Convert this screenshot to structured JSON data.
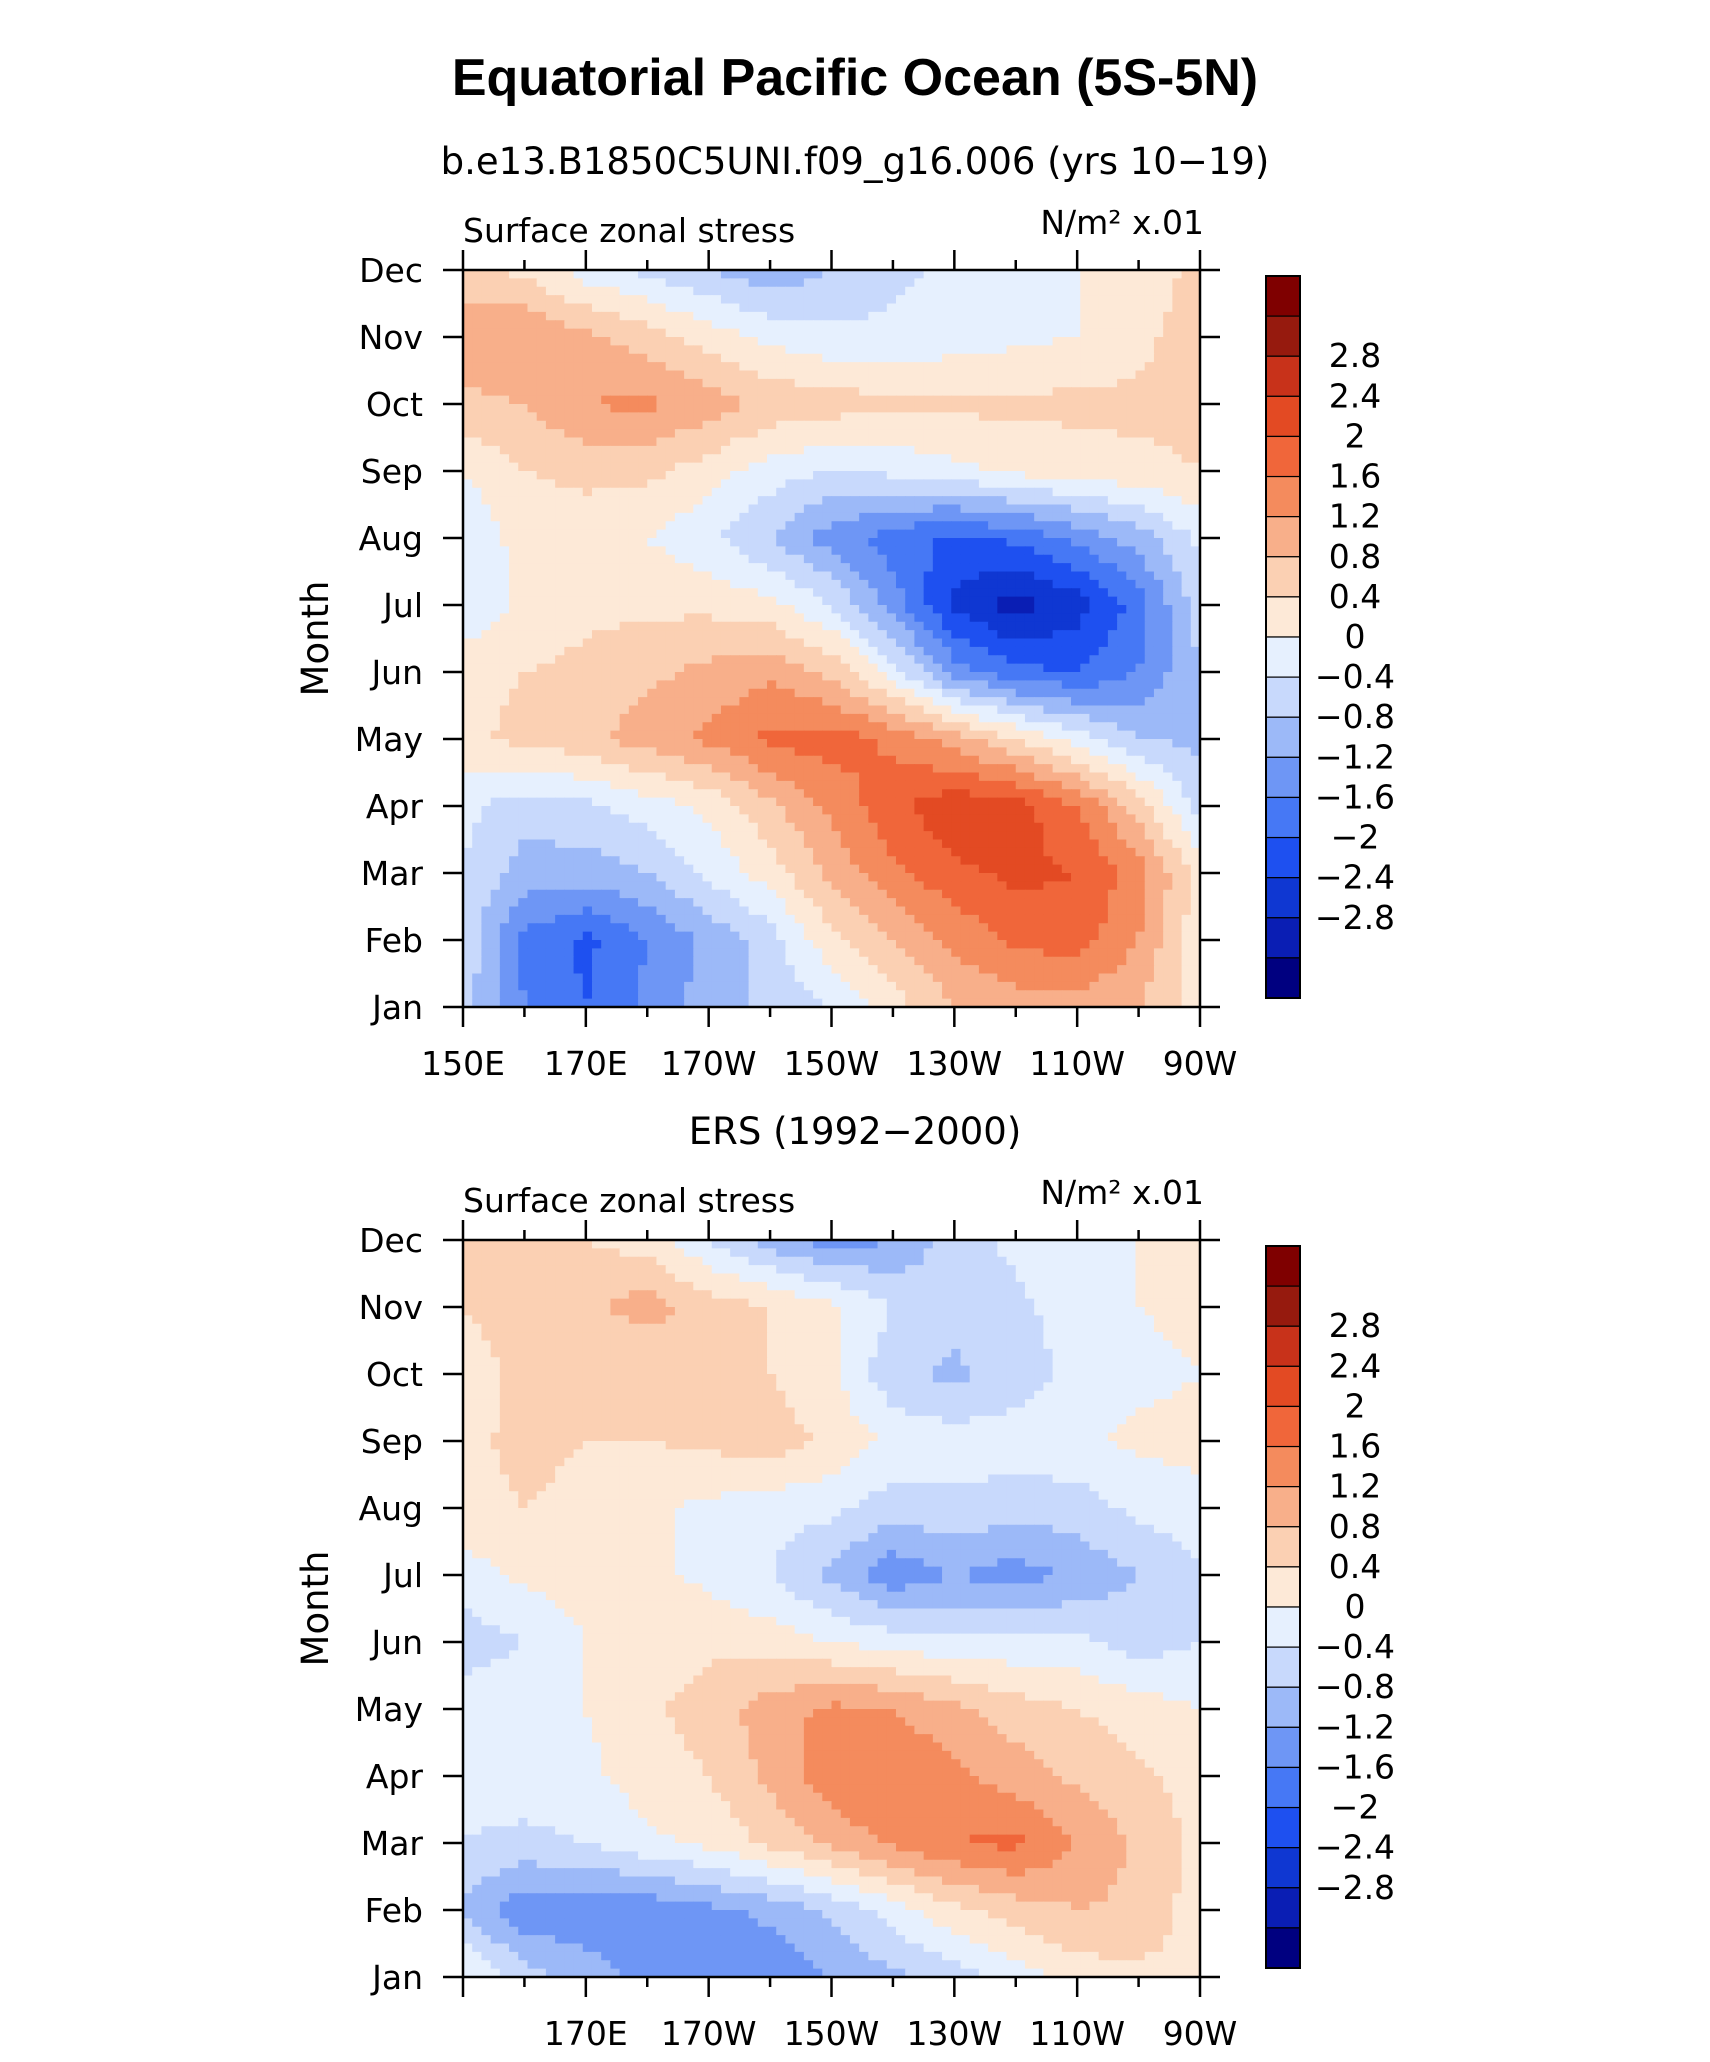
{
  "title": "Equatorial Pacific Ocean (5S-5N)",
  "subtitle_model": "b.e13.B1850C5UNI.f09_g16.006 (yrs 10−19)",
  "subtitle_obs": "ERS (1992−2000)",
  "colors": {
    "levels": [
      "#000080",
      "#0a1eb4",
      "#0f37d2",
      "#1e50f0",
      "#4678f5",
      "#6e96f5",
      "#9cb9f8",
      "#c8d9fc",
      "#e6f0fe",
      "#fde9d7",
      "#fbd0b3",
      "#f8af8a",
      "#f48b5d",
      "#f0663a",
      "#e34a23",
      "#c8321a",
      "#961a0e",
      "#7f0000"
    ]
  },
  "chart_data": [
    {
      "type": "heatmap",
      "panel": "model",
      "variable_label": "Surface zonal stress",
      "units": "N/m² x.01",
      "ylabel": "Month",
      "xlabel": "",
      "x_tick_labels": [
        "150E",
        "170E",
        "170W",
        "150W",
        "130W",
        "110W",
        "90W"
      ],
      "y_tick_labels": [
        "Jan",
        "Feb",
        "Mar",
        "Apr",
        "May",
        "Jun",
        "Jul",
        "Aug",
        "Sep",
        "Oct",
        "Nov",
        "Dec"
      ],
      "colorbar_labels": [
        "2.8",
        "2.4",
        "2",
        "1.6",
        "1.2",
        "0.8",
        "0.4",
        "0",
        "−0.4",
        "−0.8",
        "−1.2",
        "−1.6",
        "−2",
        "−2.4",
        "−2.8"
      ],
      "x": [
        150,
        160,
        170,
        180,
        190,
        200,
        210,
        220,
        230,
        240,
        250,
        260,
        270
      ],
      "y": [
        1,
        2,
        3,
        4,
        5,
        6,
        7,
        8,
        9,
        10,
        11,
        12
      ],
      "values": [
        [
          -0.6,
          -1.6,
          -2.0,
          -1.5,
          -1.0,
          -0.7,
          -0.4,
          0.2,
          0.8,
          1.0,
          1.0,
          0.8,
          0.2
        ],
        [
          -0.5,
          -1.7,
          -2.1,
          -1.6,
          -1.1,
          -0.6,
          0.3,
          0.8,
          1.3,
          1.7,
          1.8,
          1.2,
          0.1
        ],
        [
          -0.4,
          -1.0,
          -1.0,
          -0.8,
          -0.3,
          0.2,
          0.9,
          1.5,
          1.9,
          2.1,
          2.0,
          1.4,
          0.2
        ],
        [
          -0.3,
          -0.6,
          -0.5,
          -0.2,
          0.1,
          0.7,
          1.3,
          1.9,
          2.3,
          2.2,
          1.6,
          0.6,
          -0.6
        ],
        [
          0.3,
          0.5,
          0.7,
          1.0,
          1.3,
          1.7,
          1.8,
          1.5,
          1.0,
          0.4,
          -0.2,
          -0.8,
          -0.9
        ],
        [
          0.3,
          0.4,
          0.5,
          0.7,
          0.9,
          1.1,
          0.7,
          -0.2,
          -1.4,
          -1.9,
          -2.0,
          -1.6,
          -0.8
        ],
        [
          -0.4,
          0.1,
          0.3,
          0.3,
          0.3,
          0.1,
          -0.4,
          -1.4,
          -2.5,
          -3.0,
          -2.6,
          -1.8,
          -0.6
        ],
        [
          -0.4,
          0.2,
          0.2,
          0.0,
          -0.3,
          -0.8,
          -1.4,
          -1.8,
          -2.1,
          -1.9,
          -1.5,
          -1.0,
          -0.3
        ],
        [
          0.0,
          0.4,
          0.5,
          0.5,
          0.2,
          -0.2,
          -0.4,
          -0.3,
          -0.1,
          0.1,
          0.2,
          0.3,
          0.4
        ],
        [
          0.7,
          0.8,
          1.2,
          1.3,
          1.0,
          0.7,
          0.6,
          0.5,
          0.5,
          0.5,
          0.5,
          0.5,
          0.5
        ],
        [
          1.1,
          1.2,
          0.9,
          0.6,
          0.2,
          -0.1,
          -0.3,
          -0.3,
          -0.2,
          -0.1,
          0.0,
          0.3,
          0.6
        ],
        [
          0.5,
          0.3,
          -0.2,
          -0.5,
          -0.8,
          -1.1,
          -0.8,
          -0.5,
          -0.3,
          -0.1,
          0.0,
          0.2,
          0.5
        ]
      ],
      "xlim": [
        150,
        270
      ],
      "ylim": [
        1,
        12
      ]
    },
    {
      "type": "heatmap",
      "panel": "observations",
      "variable_label": "Surface zonal stress",
      "units": "N/m² x.01",
      "ylabel": "Month",
      "xlabel": "",
      "x_tick_labels": [
        "170E",
        "170W",
        "150W",
        "130W",
        "110W",
        "90W"
      ],
      "y_tick_labels": [
        "Jan",
        "Feb",
        "Mar",
        "Apr",
        "May",
        "Jun",
        "Jul",
        "Aug",
        "Sep",
        "Oct",
        "Nov",
        "Dec"
      ],
      "colorbar_labels": [
        "2.8",
        "2.4",
        "2",
        "1.6",
        "1.2",
        "0.8",
        "0.4",
        "0",
        "−0.4",
        "−0.8",
        "−1.2",
        "−1.6",
        "−2",
        "−2.4",
        "−2.8"
      ],
      "x": [
        150,
        160,
        170,
        180,
        190,
        200,
        210,
        220,
        230,
        240,
        250,
        260,
        270
      ],
      "y": [
        1,
        2,
        3,
        4,
        5,
        6,
        7,
        8,
        9,
        10,
        11,
        12
      ],
      "values": [
        [
          0.1,
          -0.6,
          -1.0,
          -1.3,
          -1.5,
          -1.5,
          -1.2,
          -0.9,
          -0.6,
          -0.2,
          0.2,
          0.3,
          0.3
        ],
        [
          -0.9,
          -1.5,
          -1.5,
          -1.5,
          -1.3,
          -1.1,
          -0.7,
          -0.2,
          0.3,
          0.6,
          0.8,
          0.7,
          0.2
        ],
        [
          -0.4,
          -0.5,
          -0.4,
          -0.1,
          0.1,
          0.5,
          0.9,
          1.3,
          1.6,
          1.7,
          1.2,
          0.7,
          0.3
        ],
        [
          -0.3,
          -0.2,
          -0.1,
          0.2,
          0.4,
          0.9,
          1.5,
          1.6,
          1.3,
          1.0,
          0.7,
          0.5,
          0.2
        ],
        [
          -0.2,
          -0.1,
          0.0,
          0.3,
          0.6,
          1.0,
          1.3,
          1.2,
          0.9,
          0.6,
          0.4,
          0.2,
          0.0
        ],
        [
          -0.6,
          -0.4,
          0.0,
          0.2,
          0.3,
          0.2,
          0.0,
          -0.2,
          -0.3,
          -0.3,
          -0.3,
          -0.6,
          -0.4
        ],
        [
          -0.2,
          0.1,
          0.2,
          0.1,
          -0.1,
          -0.4,
          -0.9,
          -1.5,
          -1.2,
          -1.4,
          -1.1,
          -0.8,
          -0.5
        ],
        [
          0.3,
          0.4,
          0.3,
          0.1,
          -0.1,
          -0.2,
          -0.3,
          -0.6,
          -0.5,
          -0.6,
          -0.6,
          -0.3,
          -0.1
        ],
        [
          0.3,
          0.5,
          0.4,
          0.4,
          0.5,
          0.6,
          0.3,
          -0.1,
          -0.2,
          -0.2,
          -0.1,
          0.1,
          0.1
        ],
        [
          0.2,
          0.5,
          0.4,
          0.4,
          0.6,
          0.4,
          0.1,
          -0.7,
          -0.9,
          -0.6,
          -0.3,
          -0.1,
          0.0
        ],
        [
          0.4,
          0.6,
          0.7,
          1.0,
          0.6,
          0.4,
          0.1,
          -0.4,
          -0.6,
          -0.5,
          -0.2,
          0.0,
          0.1
        ],
        [
          0.5,
          0.6,
          0.4,
          0.2,
          -0.4,
          -1.0,
          -1.4,
          -1.2,
          -0.6,
          -0.3,
          -0.1,
          0.0,
          0.2
        ]
      ],
      "xlim": [
        150,
        270
      ],
      "ylim": [
        1,
        12
      ]
    }
  ]
}
